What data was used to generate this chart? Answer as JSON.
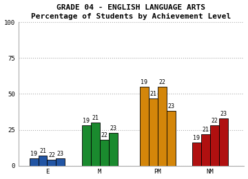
{
  "title_line1": "GRADE 04 - ENGLISH LANGUAGE ARTS",
  "title_line2": "Percentage of Students by Achievement Level",
  "categories": [
    "E",
    "M",
    "PM",
    "NM"
  ],
  "bar_values": {
    "E": [
      5,
      7,
      4,
      5
    ],
    "M": [
      28,
      30,
      18,
      23
    ],
    "PM": [
      55,
      47,
      55,
      38
    ],
    "NM": [
      16,
      22,
      28,
      33
    ]
  },
  "bar_labels": {
    "E": [
      "19",
      "21",
      "22",
      "23"
    ],
    "M": [
      "19",
      "21",
      "22",
      "23"
    ],
    "PM": [
      "19",
      "21",
      "22",
      "23"
    ],
    "NM": [
      "19",
      "21",
      "22",
      "23"
    ]
  },
  "cat_colors": {
    "E": [
      "#2255a4",
      "#2255a4",
      "#2255a4",
      "#2255a4"
    ],
    "M": [
      "#1a8a2e",
      "#1a8a2e",
      "#1a8a2e",
      "#1a8a2e"
    ],
    "PM": [
      "#d4860a",
      "#d4860a",
      "#d4860a",
      "#d4860a"
    ],
    "NM": [
      "#b01010",
      "#b01010",
      "#b01010",
      "#b01010"
    ]
  },
  "ylim": [
    0,
    100
  ],
  "yticks": [
    0,
    25,
    50,
    75,
    100
  ],
  "bar_width": 0.17,
  "group_centers": [
    0.45,
    1.45,
    2.55,
    3.55
  ],
  "font_family": "monospace",
  "title_fontsize": 8.0,
  "tick_fontsize": 6.5,
  "value_fontsize": 6.0,
  "bg_color": "#ffffff",
  "plot_bg_color": "#ffffff",
  "grid_color": "#aaaaaa",
  "bar_edge_color": "#000000",
  "bar_edge_width": 0.6,
  "xlim": [
    -0.1,
    4.2
  ]
}
